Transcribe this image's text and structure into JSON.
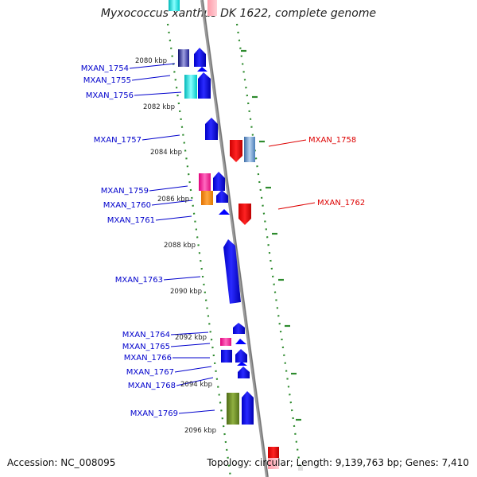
{
  "title": "Myxococcus xanthus DK 1622, complete genome",
  "footer": {
    "accession": "Accession: NC_008095",
    "summary": "Topology: circular; Length: 9,139,763 bp; Genes: 7,410"
  },
  "colors": {
    "backbone": "#8c8c8c",
    "tick_dots": "#2e8b2e",
    "forward_label": "#0000cc",
    "reverse_label": "#dd0000",
    "gene_forward": "#0000ff",
    "gene_reverse": "#ff0000",
    "gene_cyan": "#00e5e5",
    "gene_magenta": "#ff2aa0",
    "gene_orange": "#ff8c00",
    "gene_olive": "#6b8e23",
    "gene_steelblue": "#5b8fc7"
  },
  "kbp_ticks": [
    "2080 kbp",
    "2082 kbp",
    "2084 kbp",
    "2086 kbp",
    "2088 kbp",
    "2090 kbp",
    "2092 kbp",
    "2094 kbp",
    "2096 kbp"
  ],
  "genes_left": [
    "MXAN_1754",
    "MXAN_1755",
    "MXAN_1756",
    "MXAN_1757",
    "MXAN_1759",
    "MXAN_1760",
    "MXAN_1761",
    "MXAN_1763",
    "MXAN_1764",
    "MXAN_1765",
    "MXAN_1766",
    "MXAN_1767",
    "MXAN_1768",
    "MXAN_1769"
  ],
  "genes_right": [
    "MXAN_1758",
    "MXAN_1762"
  ]
}
